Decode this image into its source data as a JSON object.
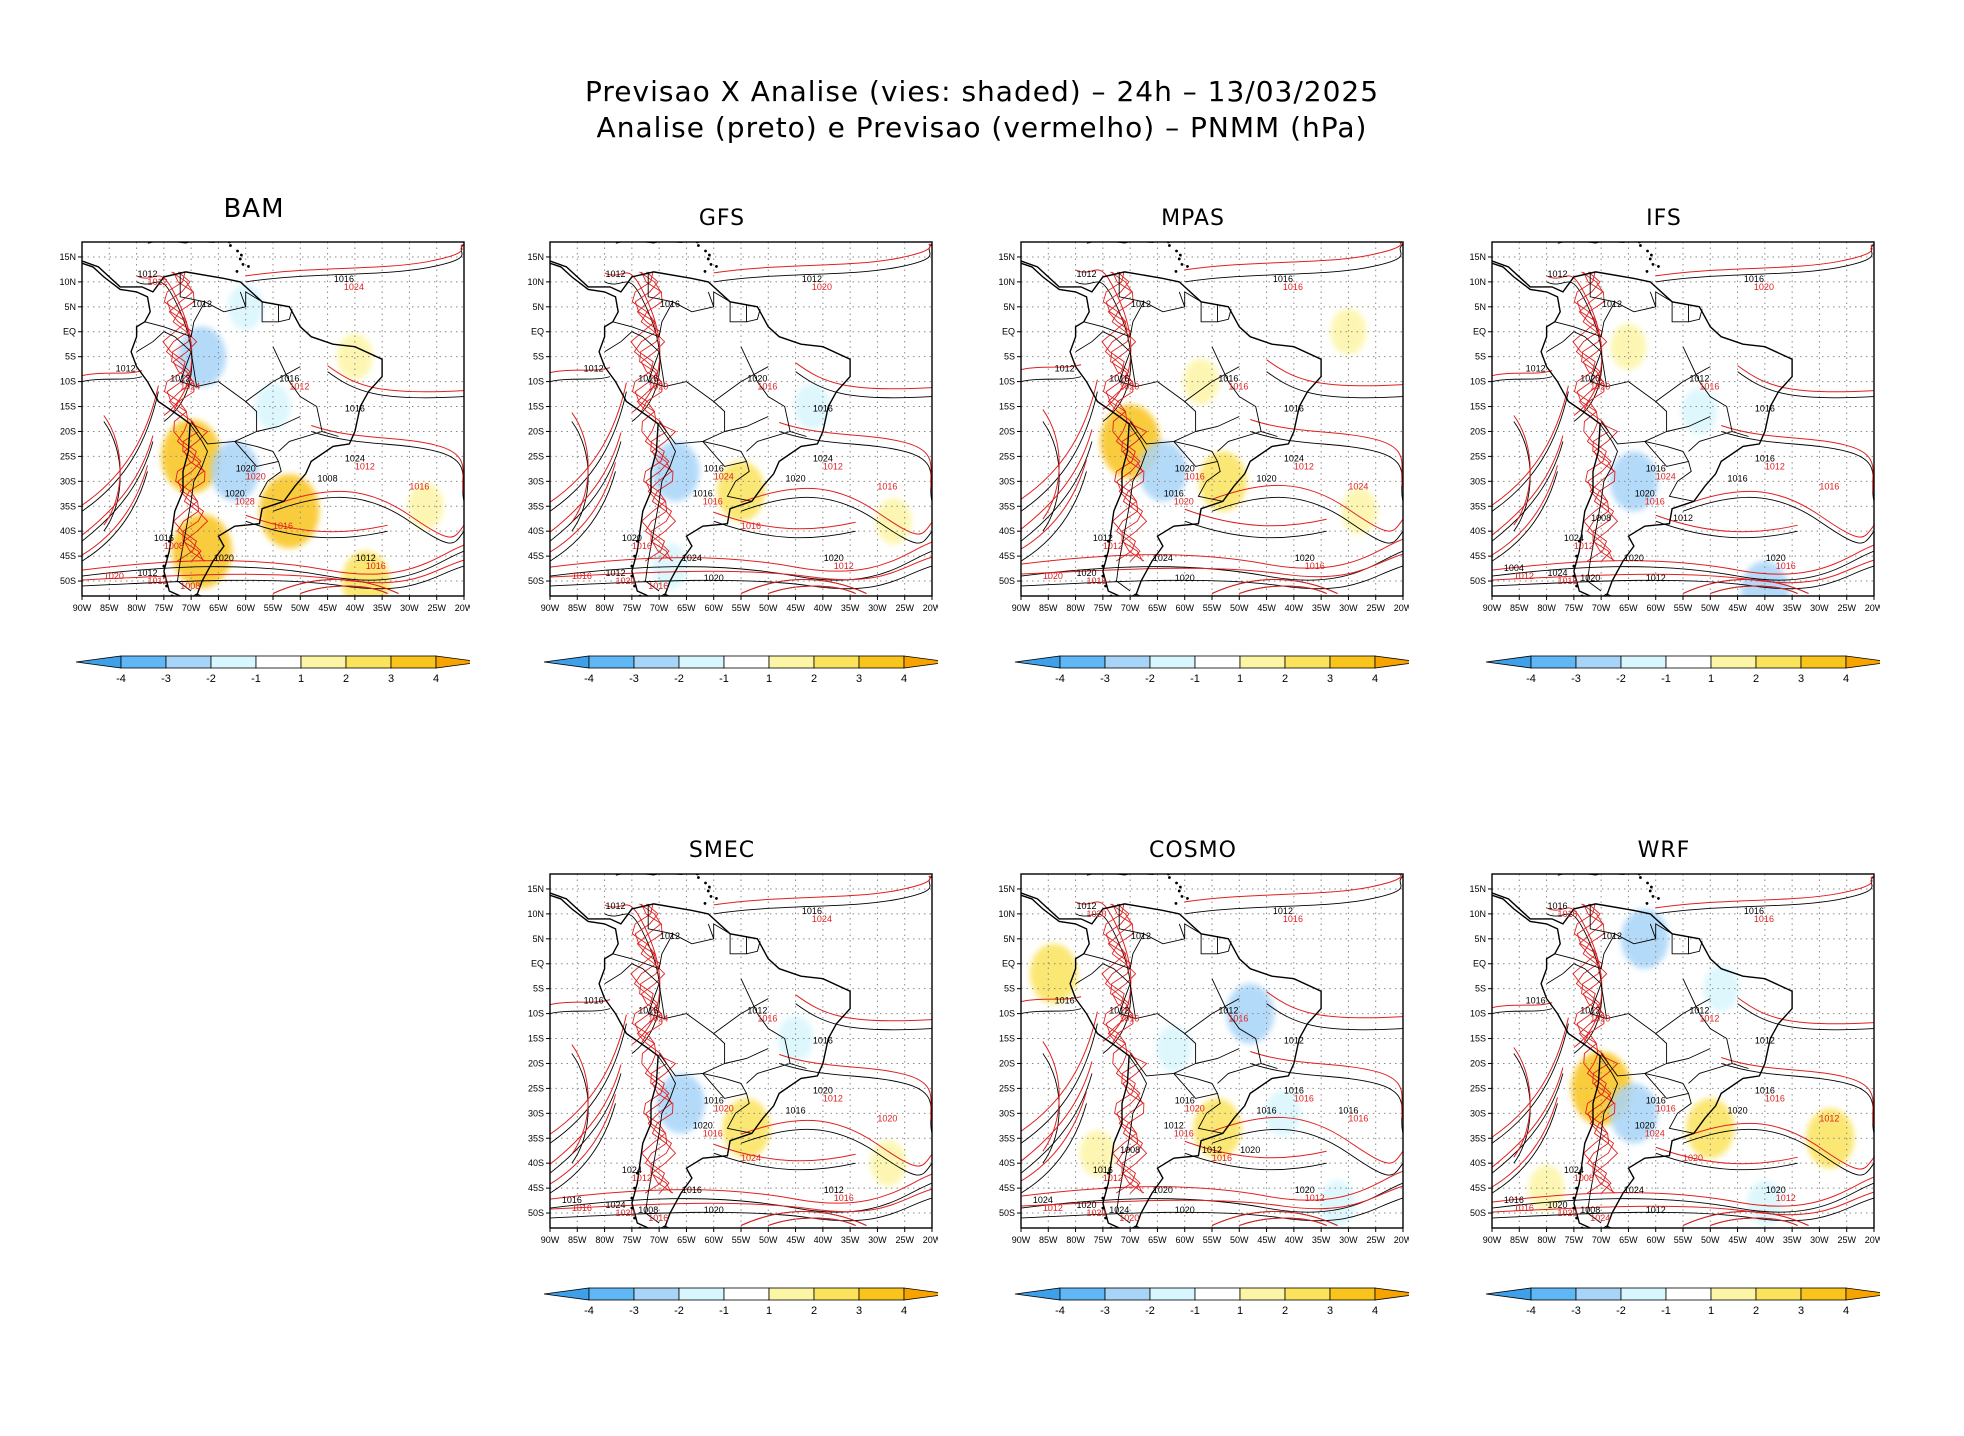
{
  "title": {
    "line1": "Previsao X Analise (vies: shaded) – 24h – 13/03/2025",
    "line2": "Analise (preto) e Previsao (vermelho) – PNMM (hPa)"
  },
  "axes": {
    "lon_labels": [
      "90W",
      "85W",
      "80W",
      "75W",
      "70W",
      "65W",
      "60W",
      "55W",
      "50W",
      "45W",
      "40W",
      "35W",
      "30W",
      "25W",
      "20W"
    ],
    "lat_labels": [
      "15N",
      "10N",
      "5N",
      "EQ",
      "5S",
      "10S",
      "15S",
      "20S",
      "25S",
      "30S",
      "35S",
      "40S",
      "45S",
      "50S"
    ],
    "lon_range": [
      -90,
      -20
    ],
    "lat_range": [
      -53,
      18
    ]
  },
  "legend": {
    "ticks": [
      "-4",
      "-3",
      "-2",
      "-1",
      "1",
      "2",
      "3",
      "4"
    ],
    "colors": [
      "#3fa0ea",
      "#5fb8f5",
      "#a8d4f8",
      "#d8f6fd",
      "#ffffff",
      "#fdf5a6",
      "#fbe35c",
      "#f9c41c",
      "#f7a400"
    ]
  },
  "colors": {
    "analysis": "#000000",
    "forecast": "#e02020",
    "grid": "#777777"
  },
  "panels": [
    {
      "name": "BAM",
      "analysis_labels": [
        "1012",
        "1016",
        "1012",
        "1012",
        "1012",
        "1016",
        "1016",
        "1020",
        "1024",
        "1008",
        "1020",
        "1016",
        "1020",
        "1012",
        "1012"
      ],
      "forecast_labels": [
        "1012",
        "1012",
        "1008",
        "1016",
        "1020",
        "1016",
        "1024",
        "1024",
        "1020",
        "1028",
        "1012",
        "1008",
        "1016",
        "1012"
      ],
      "bias": [
        {
          "lon": -68,
          "lat": -5,
          "sign": "neg",
          "strength": 2
        },
        {
          "lon": -70,
          "lat": -25,
          "sign": "pos",
          "strength": 3
        },
        {
          "lon": -68,
          "lat": -44,
          "sign": "pos",
          "strength": 3
        },
        {
          "lon": -52,
          "lat": -36,
          "sign": "pos",
          "strength": 3
        },
        {
          "lon": -38,
          "lat": -50,
          "sign": "pos",
          "strength": 2
        },
        {
          "lon": -62,
          "lat": -28,
          "sign": "neg",
          "strength": 2
        },
        {
          "lon": -55,
          "lat": -15,
          "sign": "neg",
          "strength": 1
        },
        {
          "lon": -27,
          "lat": -35,
          "sign": "pos",
          "strength": 1
        },
        {
          "lon": -60,
          "lat": 5,
          "sign": "neg",
          "strength": 1
        },
        {
          "lon": -40,
          "lat": -5,
          "sign": "pos",
          "strength": 1
        }
      ]
    },
    {
      "name": "GFS",
      "analysis_labels": [
        "1012",
        "1012",
        "1016",
        "1012",
        "1016",
        "1020",
        "1016",
        "1016",
        "1024",
        "1020",
        "1016",
        "1020",
        "1024",
        "1012",
        "1020",
        "1020"
      ],
      "forecast_labels": [
        "1016",
        "1012",
        "1016",
        "1012",
        "1016",
        "1016",
        "1020",
        "1020",
        "1024",
        "1016",
        "1020",
        "1016",
        "1016"
      ],
      "bias": [
        {
          "lon": -67,
          "lat": -28,
          "sign": "neg",
          "strength": 2
        },
        {
          "lon": -55,
          "lat": -32,
          "sign": "pos",
          "strength": 2
        },
        {
          "lon": -42,
          "lat": -15,
          "sign": "neg",
          "strength": 1
        },
        {
          "lon": -68,
          "lat": -47,
          "sign": "neg",
          "strength": 1
        },
        {
          "lon": -27,
          "lat": -38,
          "sign": "pos",
          "strength": 1
        }
      ]
    },
    {
      "name": "MPAS",
      "analysis_labels": [
        "1012",
        "1016",
        "1012",
        "1012",
        "1016",
        "1016",
        "1016",
        "1020",
        "1024",
        "1020",
        "1016",
        "1012",
        "1024",
        "1020",
        "1020",
        "1020"
      ],
      "forecast_labels": [
        "1016",
        "1012",
        "1012",
        "1016",
        "1020",
        "1024",
        "1016",
        "1020",
        "1016",
        "1020",
        "1016"
      ],
      "bias": [
        {
          "lon": -30,
          "lat": 0,
          "sign": "pos",
          "strength": 1
        },
        {
          "lon": -70,
          "lat": -22,
          "sign": "pos",
          "strength": 3
        },
        {
          "lon": -53,
          "lat": -30,
          "sign": "pos",
          "strength": 2
        },
        {
          "lon": -64,
          "lat": -28,
          "sign": "neg",
          "strength": 2
        },
        {
          "lon": -57,
          "lat": -10,
          "sign": "pos",
          "strength": 1
        },
        {
          "lon": -28,
          "lat": -36,
          "sign": "pos",
          "strength": 1
        }
      ]
    },
    {
      "name": "IFS",
      "analysis_labels": [
        "1012",
        "1016",
        "1012",
        "1012",
        "1020",
        "1012",
        "1016",
        "1016",
        "1016",
        "1016",
        "1020",
        "1024",
        "1020",
        "1024",
        "1020",
        "1012",
        "1020",
        "1004",
        "1008",
        "1012"
      ],
      "forecast_labels": [
        "1016",
        "1012",
        "1012",
        "1016",
        "1012",
        "1016",
        "1020",
        "1020",
        "1024",
        "1016",
        "1016"
      ],
      "bias": [
        {
          "lon": -65,
          "lat": -3,
          "sign": "pos",
          "strength": 1
        },
        {
          "lon": -64,
          "lat": -30,
          "sign": "neg",
          "strength": 2
        },
        {
          "lon": -40,
          "lat": -52,
          "sign": "neg",
          "strength": 2
        },
        {
          "lon": -52,
          "lat": -16,
          "sign": "neg",
          "strength": 1
        }
      ]
    },
    {
      "name": "SMEC",
      "analysis_labels": [
        "1012",
        "1016",
        "1012",
        "1016",
        "1016",
        "1012",
        "1016",
        "1016",
        "1020",
        "1016",
        "1020",
        "1024",
        "1016",
        "1024",
        "1012",
        "1020",
        "1008",
        "1016"
      ],
      "forecast_labels": [
        "1016",
        "1012",
        "1012",
        "1016",
        "1016",
        "1020",
        "1024",
        "1024",
        "1020",
        "1016",
        "1020",
        "1016",
        "1024"
      ],
      "bias": [
        {
          "lon": -66,
          "lat": -28,
          "sign": "neg",
          "strength": 2
        },
        {
          "lon": -54,
          "lat": -33,
          "sign": "pos",
          "strength": 2
        },
        {
          "lon": -45,
          "lat": -15,
          "sign": "neg",
          "strength": 1
        },
        {
          "lon": -28,
          "lat": -40,
          "sign": "pos",
          "strength": 1
        }
      ]
    },
    {
      "name": "COSMO",
      "analysis_labels": [
        "1012",
        "1012",
        "1012",
        "1016",
        "1012",
        "1012",
        "1012",
        "1016",
        "1016",
        "1016",
        "1012",
        "1016",
        "1020",
        "1020",
        "1020",
        "1020",
        "1024",
        "1024",
        "1008",
        "1012",
        "1016",
        "1020"
      ],
      "forecast_labels": [
        "1016",
        "1016",
        "1012",
        "1012",
        "1012",
        "1016",
        "1016",
        "1016",
        "1020",
        "1016",
        "1020",
        "1020",
        "1016",
        "1020"
      ],
      "bias": [
        {
          "lon": -48,
          "lat": -10,
          "sign": "neg",
          "strength": 2
        },
        {
          "lon": -42,
          "lat": -30,
          "sign": "neg",
          "strength": 1
        },
        {
          "lon": -62,
          "lat": -17,
          "sign": "neg",
          "strength": 1
        },
        {
          "lon": -84,
          "lat": -2,
          "sign": "pos",
          "strength": 2
        },
        {
          "lon": -76,
          "lat": -38,
          "sign": "pos",
          "strength": 1
        },
        {
          "lon": -54,
          "lat": -33,
          "sign": "pos",
          "strength": 2
        },
        {
          "lon": -32,
          "lat": -48,
          "sign": "neg",
          "strength": 1
        }
      ]
    },
    {
      "name": "WRF",
      "analysis_labels": [
        "1016",
        "1016",
        "1012",
        "1016",
        "1012",
        "1012",
        "1012",
        "1016",
        "1016",
        "1020",
        "1020",
        "1024",
        "1024",
        "1020",
        "1020",
        "1012",
        "1008",
        "1016"
      ],
      "forecast_labels": [
        "1012",
        "1016",
        "1008",
        "1012",
        "1016",
        "1012",
        "1016",
        "1020",
        "1016",
        "1024",
        "1020",
        "1024",
        "1020",
        "1016"
      ],
      "bias": [
        {
          "lon": -62,
          "lat": 5,
          "sign": "neg",
          "strength": 2
        },
        {
          "lon": -70,
          "lat": -25,
          "sign": "pos",
          "strength": 3
        },
        {
          "lon": -64,
          "lat": -30,
          "sign": "neg",
          "strength": 2
        },
        {
          "lon": -50,
          "lat": -33,
          "sign": "pos",
          "strength": 2
        },
        {
          "lon": -28,
          "lat": -35,
          "sign": "pos",
          "strength": 2
        },
        {
          "lon": -48,
          "lat": -5,
          "sign": "neg",
          "strength": 1
        },
        {
          "lon": -80,
          "lat": -45,
          "sign": "pos",
          "strength": 1
        },
        {
          "lon": -40,
          "lat": -48,
          "sign": "neg",
          "strength": 1
        }
      ]
    }
  ]
}
